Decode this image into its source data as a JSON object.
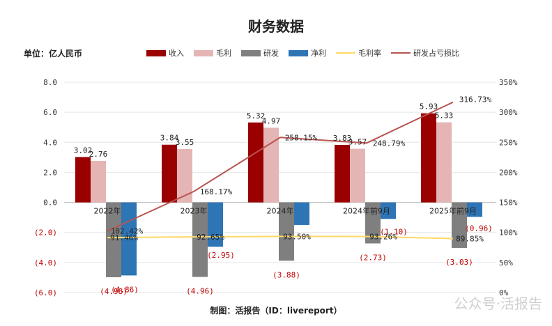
{
  "title": "财务数据",
  "unit_label": "单位：亿人民币",
  "footer": "制图：活报告（ID：livereport）",
  "watermark": "公众号·活报告",
  "colors": {
    "revenue": "#9B0000",
    "gross": "#E5B5B5",
    "rd": "#7F7F7F",
    "net": "#2E75B6",
    "margin": "#FFD966",
    "ratio": "#B85450",
    "negative_text": "#C00000"
  },
  "chart_data": {
    "type": "bar",
    "categories": [
      "2022年",
      "2023年",
      "2024年",
      "2024年前9月",
      "2025年前9月"
    ],
    "y_left": {
      "min": -6,
      "max": 8,
      "step": 2,
      "tick_labels": [
        "(6.0)",
        "(4.0)",
        "(2.0)",
        "0.0",
        "2.0",
        "4.0",
        "6.0",
        "8.0"
      ]
    },
    "y_right": {
      "min": 0,
      "max": 350,
      "step": 50,
      "tick_labels": [
        "0%",
        "50%",
        "100%",
        "150%",
        "200%",
        "250%",
        "300%",
        "350%"
      ]
    },
    "series": [
      {
        "name": "收入",
        "type": "bar",
        "axis": "left",
        "values": [
          3.02,
          3.84,
          5.32,
          3.83,
          5.93
        ],
        "labels": [
          "3.02",
          "3.84",
          "5.32",
          "3.83",
          "5.93"
        ]
      },
      {
        "name": "毛利",
        "type": "bar",
        "axis": "left",
        "values": [
          2.76,
          3.55,
          4.97,
          3.57,
          5.33
        ],
        "labels": [
          "2.76",
          "3.55",
          "4.97",
          "3.57",
          "5.33"
        ]
      },
      {
        "name": "研发",
        "type": "bar",
        "axis": "left",
        "values": [
          -4.98,
          -4.96,
          -3.88,
          -2.73,
          -3.03
        ],
        "labels": [
          "(4.98)",
          "(4.96)",
          "(3.88)",
          "(2.73)",
          "(3.03)"
        ]
      },
      {
        "name": "净利",
        "type": "bar",
        "axis": "left",
        "values": [
          -4.86,
          -2.95,
          -1.5,
          -1.1,
          -0.96
        ],
        "labels": [
          "(4.86)",
          "(2.95)",
          "",
          "(1.10)",
          "(0.96)"
        ]
      },
      {
        "name": "毛利率",
        "type": "line",
        "axis": "right",
        "values": [
          91.46,
          92.65,
          93.5,
          93.26,
          89.85
        ],
        "labels": [
          "91.46%",
          "92.65%",
          "93.50%",
          "93.26%",
          "89.85%"
        ]
      },
      {
        "name": "研发占亏损比",
        "type": "line",
        "axis": "right",
        "values": [
          102.42,
          168.17,
          258.15,
          248.79,
          316.73
        ],
        "labels": [
          "102.42%",
          "168.17%",
          "258.15%",
          "248.79%",
          "316.73%"
        ]
      }
    ],
    "grid": true,
    "legend_position": "top"
  }
}
